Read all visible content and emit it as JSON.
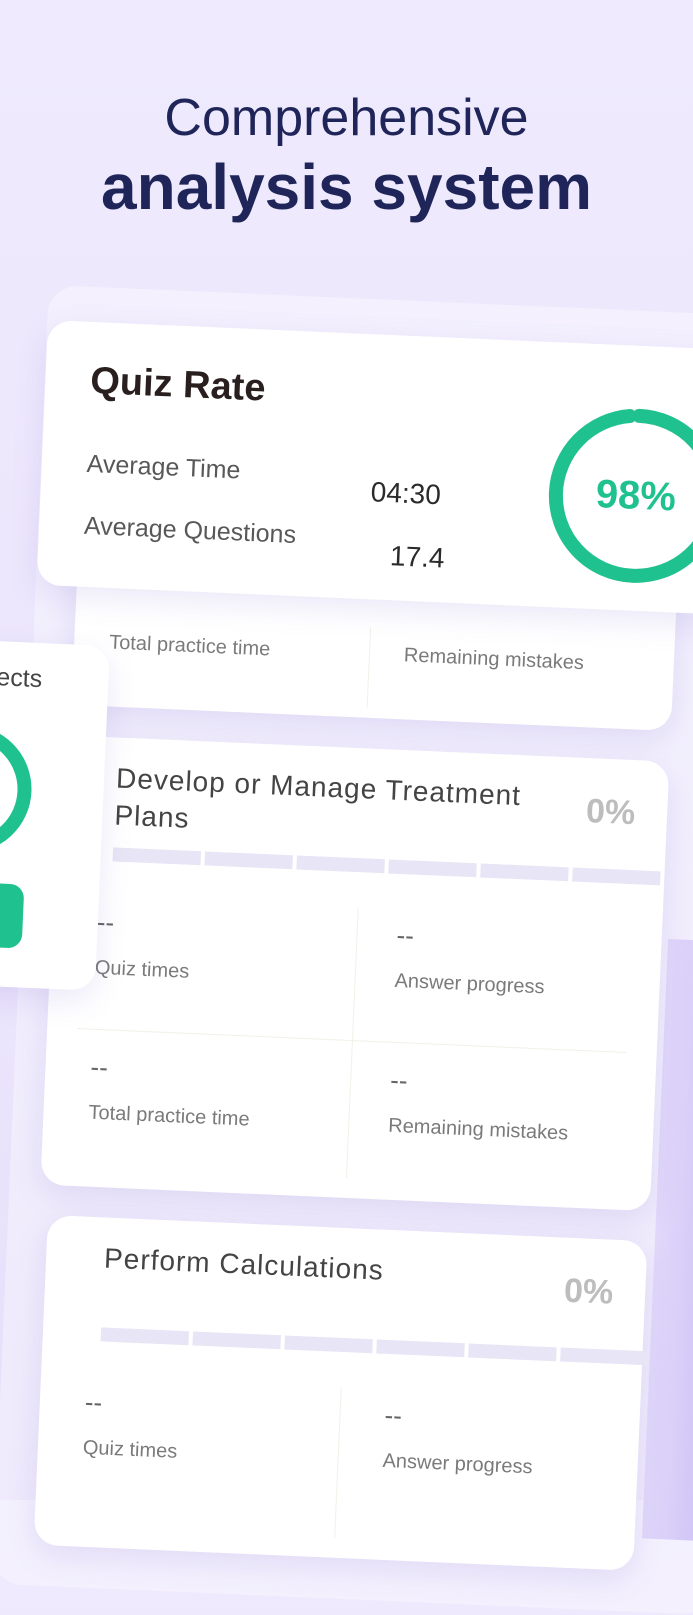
{
  "header": {
    "title_line1": "Comprehensive",
    "title_line2": "analysis system"
  },
  "quiz_rate": {
    "title": "Quiz Rate",
    "rows": [
      {
        "label": "Average Time",
        "value": "04:30"
      },
      {
        "label": "Average Questions",
        "value": "17.4"
      }
    ],
    "percent": "98%"
  },
  "partial_card": {
    "stats": [
      "Total practice time",
      "Remaining mistakes"
    ]
  },
  "side_card": {
    "title": "ects"
  },
  "subjects": [
    {
      "title": "Develop or Manage Treatment Plans",
      "percent": "0%",
      "stats": [
        {
          "value": "--",
          "label": "Quiz times"
        },
        {
          "value": "--",
          "label": "Answer progress"
        },
        {
          "value": "--",
          "label": "Total practice time"
        },
        {
          "value": "--",
          "label": "Remaining mistakes"
        }
      ]
    },
    {
      "title": "Perform Calculations",
      "percent": "0%",
      "stats": [
        {
          "value": "--",
          "label": "Quiz times"
        },
        {
          "value": "--",
          "label": "Answer progress"
        }
      ]
    }
  ]
}
